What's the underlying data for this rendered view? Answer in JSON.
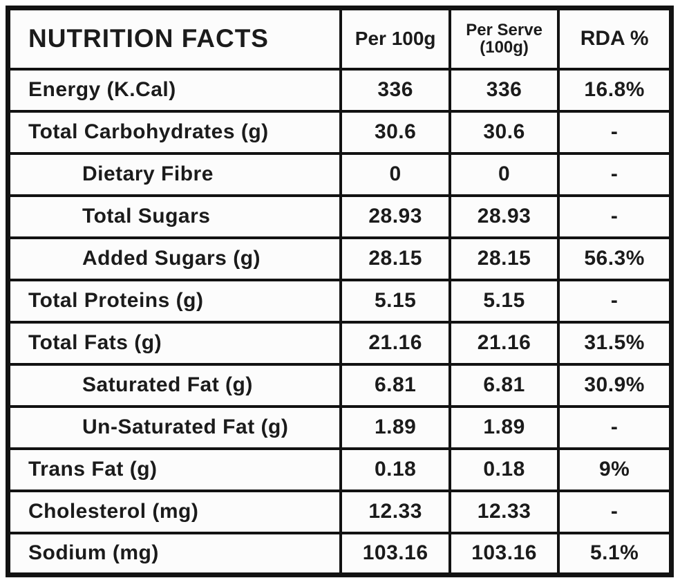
{
  "colors": {
    "border": "#121212",
    "text": "#1b1b1b",
    "background": "#fcfcfc"
  },
  "table": {
    "header": {
      "title": "NUTRITION FACTS",
      "per_100g": "Per 100g",
      "per_serve_line1": "Per Serve",
      "per_serve_line2": "(100g)",
      "rda": "RDA %"
    },
    "rows": [
      {
        "label": "Energy (K.Cal)",
        "indent": false,
        "per_100g": "336",
        "per_serve": "336",
        "rda": "16.8%"
      },
      {
        "label": "Total Carbohydrates (g)",
        "indent": false,
        "per_100g": "30.6",
        "per_serve": "30.6",
        "rda": "-"
      },
      {
        "label": "Dietary Fibre",
        "indent": true,
        "per_100g": "0",
        "per_serve": "0",
        "rda": "-"
      },
      {
        "label": "Total Sugars",
        "indent": true,
        "per_100g": "28.93",
        "per_serve": "28.93",
        "rda": "-"
      },
      {
        "label": "Added Sugars (g)",
        "indent": true,
        "per_100g": "28.15",
        "per_serve": "28.15",
        "rda": "56.3%"
      },
      {
        "label": "Total Proteins (g)",
        "indent": false,
        "per_100g": "5.15",
        "per_serve": "5.15",
        "rda": "-"
      },
      {
        "label": "Total Fats (g)",
        "indent": false,
        "per_100g": "21.16",
        "per_serve": "21.16",
        "rda": "31.5%"
      },
      {
        "label": "Saturated Fat (g)",
        "indent": true,
        "per_100g": "6.81",
        "per_serve": "6.81",
        "rda": "30.9%"
      },
      {
        "label": "Un-Saturated Fat (g)",
        "indent": true,
        "per_100g": "1.89",
        "per_serve": "1.89",
        "rda": "-"
      },
      {
        "label": "Trans Fat (g)",
        "indent": false,
        "per_100g": "0.18",
        "per_serve": "0.18",
        "rda": "9%"
      },
      {
        "label": "Cholesterol (mg)",
        "indent": false,
        "per_100g": "12.33",
        "per_serve": "12.33",
        "rda": "-"
      },
      {
        "label": "Sodium (mg)",
        "indent": false,
        "per_100g": "103.16",
        "per_serve": "103.16",
        "rda": "5.1%"
      }
    ]
  }
}
